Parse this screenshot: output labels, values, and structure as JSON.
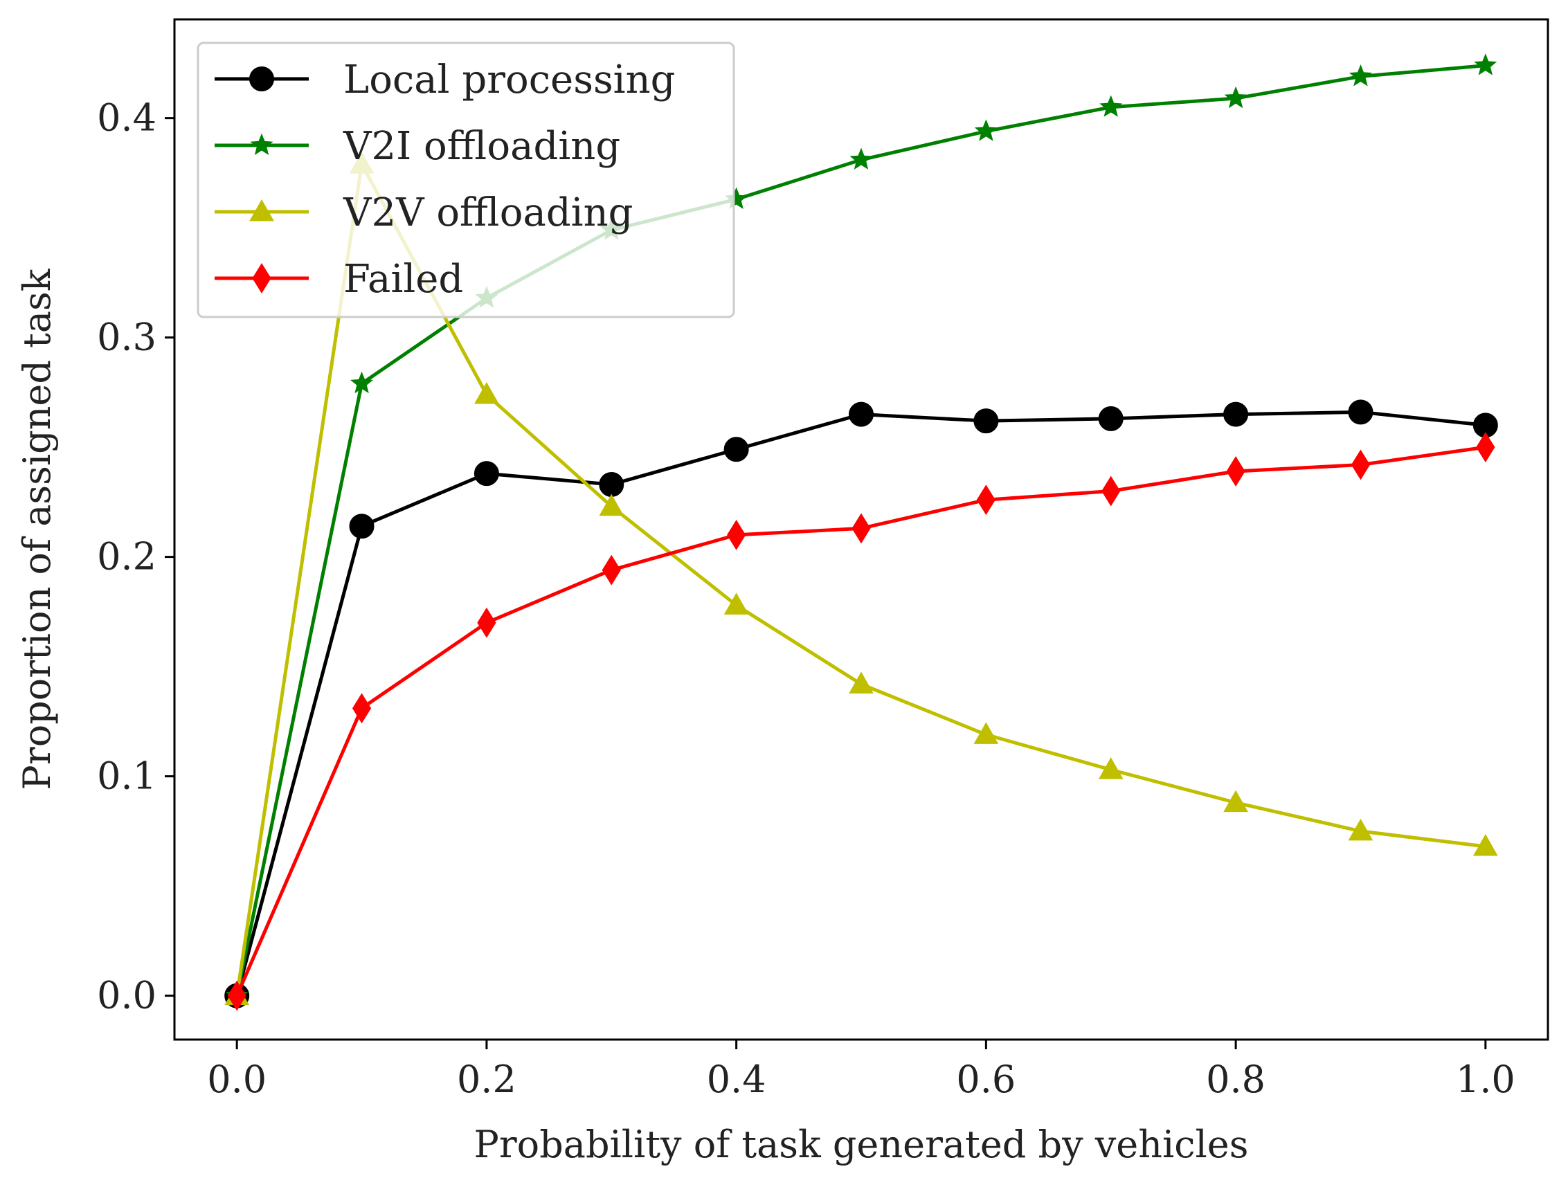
{
  "chart_data": {
    "type": "line",
    "title": "",
    "xlabel": "Probability of task generated by vehicles",
    "ylabel": "Proportion of assigned task",
    "xlim": [
      -0.05,
      1.05
    ],
    "ylim": [
      -0.02,
      0.445
    ],
    "xticks": [
      0.0,
      0.2,
      0.4,
      0.6,
      0.8,
      1.0
    ],
    "xtick_labels": [
      "0.0",
      "0.2",
      "0.4",
      "0.6",
      "0.8",
      "1.0"
    ],
    "yticks": [
      0.0,
      0.1,
      0.2,
      0.3,
      0.4
    ],
    "ytick_labels": [
      "0.0",
      "0.1",
      "0.2",
      "0.3",
      "0.4"
    ],
    "grid": false,
    "legend_position": "top-left",
    "x": [
      0.0,
      0.1,
      0.2,
      0.3,
      0.4,
      0.5,
      0.6,
      0.7,
      0.8,
      0.9,
      1.0
    ],
    "series": [
      {
        "name": "Local processing",
        "color": "#000000",
        "marker": "circle",
        "values": [
          0.0,
          0.214,
          0.238,
          0.233,
          0.249,
          0.265,
          0.262,
          0.263,
          0.265,
          0.266,
          0.26
        ]
      },
      {
        "name": "V2I offloading",
        "color": "#008000",
        "marker": "star",
        "values": [
          0.0,
          0.279,
          0.318,
          0.349,
          0.363,
          0.381,
          0.394,
          0.405,
          0.409,
          0.419,
          0.424
        ]
      },
      {
        "name": "V2V offloading",
        "color": "#bfbf00",
        "marker": "triangle",
        "values": [
          0.0,
          0.379,
          0.274,
          0.223,
          0.178,
          0.142,
          0.119,
          0.103,
          0.088,
          0.075,
          0.068
        ]
      },
      {
        "name": "Failed",
        "color": "#ff0000",
        "marker": "diamond",
        "values": [
          0.0,
          0.131,
          0.17,
          0.194,
          0.21,
          0.213,
          0.226,
          0.23,
          0.239,
          0.242,
          0.25
        ]
      }
    ]
  }
}
